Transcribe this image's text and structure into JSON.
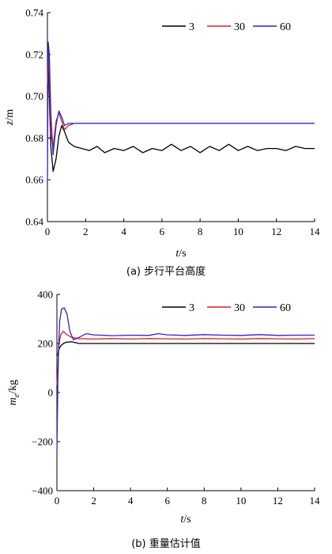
{
  "figure": {
    "caption_a": "(a) 步行平台高度",
    "caption_b": "(b) 重量估计值"
  },
  "chart_data": [
    {
      "type": "line",
      "id": "a",
      "title": "",
      "xlabel": "t/s",
      "ylabel": "z/m",
      "xlim": [
        0,
        14
      ],
      "ylim": [
        0.64,
        0.74
      ],
      "xticks": [
        0,
        2,
        4,
        6,
        8,
        10,
        12,
        14
      ],
      "yticks": [
        0.64,
        0.66,
        0.68,
        0.7,
        0.72,
        0.74
      ],
      "ytick_labels": [
        "0.64",
        "0.66",
        "0.68",
        "0.70",
        "0.72",
        "0.74"
      ],
      "legend_position": "top-right",
      "grid": false,
      "series": [
        {
          "name": "3",
          "color": "#000000",
          "x": [
            0,
            0.04,
            0.1,
            0.18,
            0.3,
            0.45,
            0.6,
            0.75,
            0.9,
            1.1,
            1.4,
            1.8,
            2.2,
            2.6,
            3.0,
            3.5,
            4.0,
            4.5,
            5.0,
            5.5,
            6.0,
            6.5,
            7.0,
            7.5,
            8.0,
            8.5,
            9.0,
            9.5,
            10.0,
            10.5,
            11.0,
            11.5,
            12.0,
            12.5,
            13.0,
            13.5,
            14.0
          ],
          "y": [
            0.705,
            0.72,
            0.7,
            0.676,
            0.664,
            0.67,
            0.681,
            0.686,
            0.683,
            0.678,
            0.676,
            0.675,
            0.674,
            0.676,
            0.673,
            0.675,
            0.674,
            0.676,
            0.673,
            0.675,
            0.674,
            0.677,
            0.674,
            0.676,
            0.673,
            0.676,
            0.674,
            0.677,
            0.674,
            0.676,
            0.674,
            0.675,
            0.675,
            0.674,
            0.676,
            0.675,
            0.675
          ]
        },
        {
          "name": "30",
          "color": "#e02020",
          "x": [
            0,
            0.04,
            0.1,
            0.18,
            0.3,
            0.45,
            0.6,
            0.75,
            0.9,
            1.1,
            1.4,
            1.8,
            2.5,
            3.5,
            4.5,
            5.5,
            6.5,
            7.5,
            8.5,
            9.5,
            10.5,
            11.5,
            12.5,
            13.5,
            14.0
          ],
          "y": [
            0.705,
            0.722,
            0.71,
            0.682,
            0.676,
            0.688,
            0.692,
            0.688,
            0.684,
            0.686,
            0.687,
            0.687,
            0.687,
            0.687,
            0.687,
            0.687,
            0.687,
            0.687,
            0.687,
            0.687,
            0.687,
            0.687,
            0.687,
            0.687,
            0.687
          ]
        },
        {
          "name": "60",
          "color": "#2828c8",
          "x": [
            0,
            0.04,
            0.1,
            0.18,
            0.3,
            0.45,
            0.6,
            0.75,
            0.9,
            1.1,
            1.4,
            1.8,
            2.5,
            3.5,
            4.5,
            5.5,
            6.5,
            7.5,
            8.5,
            9.5,
            10.5,
            11.5,
            12.5,
            13.5,
            14.0
          ],
          "y": [
            0.658,
            0.726,
            0.72,
            0.692,
            0.672,
            0.686,
            0.693,
            0.69,
            0.686,
            0.687,
            0.687,
            0.687,
            0.687,
            0.687,
            0.687,
            0.687,
            0.687,
            0.687,
            0.687,
            0.687,
            0.687,
            0.687,
            0.687,
            0.687,
            0.687
          ]
        }
      ]
    },
    {
      "type": "line",
      "id": "b",
      "title": "",
      "xlabel": "t/s",
      "ylabel": "m_e/kg",
      "xlim": [
        0,
        14
      ],
      "ylim": [
        -400,
        400
      ],
      "xticks": [
        0,
        2,
        4,
        6,
        8,
        10,
        12,
        14
      ],
      "yticks": [
        -400,
        -200,
        0,
        200,
        400
      ],
      "ytick_labels": [
        "−400",
        "−200",
        "0",
        "200",
        "400"
      ],
      "legend_position": "top-right",
      "grid": false,
      "series": [
        {
          "name": "3",
          "color": "#000000",
          "x": [
            0,
            0.05,
            0.1,
            0.2,
            0.35,
            0.5,
            0.8,
            1.2,
            2,
            3,
            4,
            5,
            6,
            7,
            8,
            9,
            10,
            11,
            12,
            13,
            14
          ],
          "y": [
            150,
            155,
            175,
            190,
            200,
            205,
            207,
            200,
            200,
            200,
            200,
            200,
            200,
            200,
            200,
            200,
            200,
            200,
            200,
            200,
            200
          ]
        },
        {
          "name": "30",
          "color": "#e02020",
          "x": [
            0,
            0.05,
            0.1,
            0.2,
            0.35,
            0.5,
            0.8,
            1.2,
            2,
            3,
            4,
            5,
            6,
            7,
            8,
            9,
            10,
            11,
            12,
            13,
            14
          ],
          "y": [
            30,
            90,
            190,
            235,
            250,
            238,
            225,
            220,
            218,
            220,
            218,
            220,
            219,
            218,
            220,
            219,
            218,
            220,
            219,
            218,
            220
          ]
        },
        {
          "name": "60",
          "color": "#2828c8",
          "x": [
            0,
            0.05,
            0.1,
            0.15,
            0.25,
            0.4,
            0.55,
            0.7,
            0.9,
            1.2,
            1.6,
            2,
            3,
            4,
            5,
            5.5,
            6,
            7,
            8,
            9,
            10,
            11,
            12,
            13,
            14
          ],
          "y": [
            -250,
            50,
            200,
            290,
            340,
            345,
            320,
            250,
            215,
            225,
            240,
            235,
            232,
            234,
            233,
            240,
            235,
            233,
            236,
            234,
            233,
            236,
            233,
            234,
            234
          ]
        }
      ]
    }
  ]
}
